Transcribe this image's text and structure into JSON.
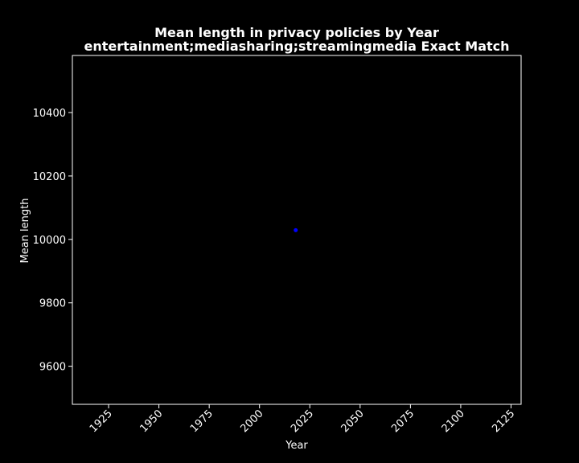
{
  "chart_data": {
    "type": "scatter",
    "title_line1": "Mean length in privacy policies by Year",
    "title_line2": "entertainment;mediasharing;streamingmedia Exact Match",
    "xlabel": "Year",
    "ylabel": "Mean length",
    "xlim": [
      1907,
      2130
    ],
    "ylim": [
      9480,
      10580
    ],
    "xticks": [
      1925,
      1950,
      1975,
      2000,
      2025,
      2050,
      2075,
      2100,
      2125
    ],
    "yticks": [
      9600,
      9800,
      10000,
      10200,
      10400
    ],
    "points": [
      {
        "x": 2018,
        "y": 10029
      }
    ],
    "marker_color": "#0000ff",
    "grid": false,
    "background": "#000000",
    "foreground": "#ffffff"
  }
}
